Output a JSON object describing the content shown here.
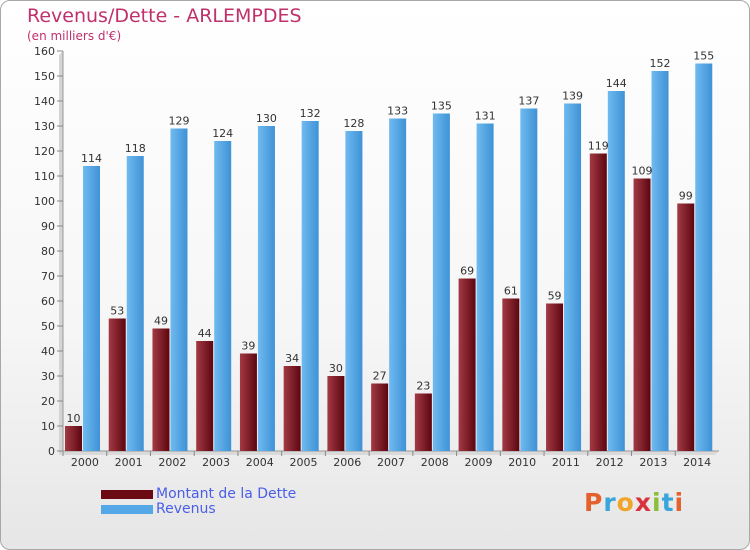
{
  "header": {
    "title": "Revenus/Dette - ARLEMPDES",
    "subtitle": "(en milliers d'€)"
  },
  "colors": {
    "dette": "#6b0a12",
    "revenus": "#55a8e8"
  },
  "legend": {
    "items": [
      {
        "label": "Montant de la Dette",
        "color": "#6b0a12"
      },
      {
        "label": "Revenus",
        "color": "#55a8e8"
      }
    ]
  },
  "logo": {
    "text": "Proxiti",
    "colors": [
      "#e5602c",
      "#3aa5dc",
      "#f0a52a",
      "#d9323a",
      "#8bbf3a",
      "#3aa5dc",
      "#e5602c"
    ]
  },
  "chart_data": {
    "type": "bar",
    "categories": [
      "2000",
      "2001",
      "2002",
      "2003",
      "2004",
      "2005",
      "2006",
      "2007",
      "2008",
      "2009",
      "2010",
      "2011",
      "2012",
      "2013",
      "2014"
    ],
    "series": [
      {
        "name": "Montant de la Dette",
        "values": [
          10,
          53,
          49,
          44,
          39,
          34,
          30,
          27,
          23,
          69,
          61,
          59,
          119,
          109,
          99
        ]
      },
      {
        "name": "Revenus",
        "values": [
          114,
          118,
          129,
          124,
          130,
          132,
          128,
          133,
          135,
          131,
          137,
          139,
          144,
          152,
          155
        ]
      }
    ],
    "ylim": [
      0,
      160
    ],
    "yticks": [
      0,
      10,
      20,
      30,
      40,
      50,
      60,
      70,
      80,
      90,
      100,
      110,
      120,
      130,
      140,
      150,
      160
    ],
    "grid": false,
    "legend_position": "bottom-left"
  }
}
